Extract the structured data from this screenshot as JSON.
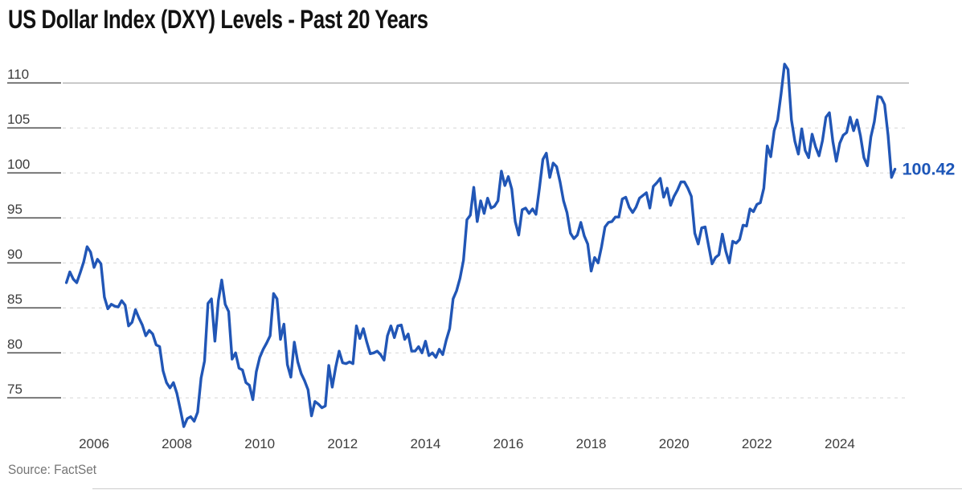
{
  "page": {
    "title": "US Dollar Index (DXY) Levels - Past 20 Years",
    "source": "Source: FactSet"
  },
  "chart_data": {
    "type": "line",
    "title": "US Dollar Index (DXY) Levels - Past 20 Years",
    "series_name": "US Dollar Index (DXY)",
    "frequency": "monthly",
    "start": "2005-05",
    "end": "2025-05",
    "xlabel": "",
    "ylabel": "",
    "y_ticks": [
      110,
      105,
      100,
      95,
      90,
      85,
      80,
      75
    ],
    "x_ticks": [
      "2006",
      "2008",
      "2010",
      "2012",
      "2014",
      "2016",
      "2018",
      "2020",
      "2022",
      "2024"
    ],
    "ylim": [
      71,
      113
    ],
    "grid": "horizontal dashed gridlines; top 110 gridline solid; no legend",
    "end_label": "100.42",
    "colors": {
      "line": "#2156b6",
      "end_label": "#1d56b8",
      "axis_text": "#3d3d3d",
      "grid_dashed": "#d9d9d9",
      "grid_solid_top": "#a0a0a0",
      "tick_underline": "#4f4f4f"
    },
    "values_by_year": {
      "2005": [
        87.8,
        89.0,
        88.2,
        87.8,
        88.9,
        90.1,
        91.8,
        91.2
      ],
      "2006": [
        89.5,
        90.4,
        89.9,
        86.2,
        84.9,
        85.4,
        85.2,
        85.1,
        85.8,
        85.3,
        83.0,
        83.4
      ],
      "2007": [
        84.8,
        83.9,
        83.1,
        81.9,
        82.5,
        82.1,
        80.9,
        80.7,
        78.0,
        76.7,
        76.1,
        76.7
      ],
      "2008": [
        75.5,
        73.7,
        71.8,
        72.7,
        72.9,
        72.4,
        73.4,
        77.2,
        79.1,
        85.5,
        86.0,
        81.3
      ],
      "2009": [
        85.8,
        88.1,
        85.4,
        84.6,
        79.3,
        80.0,
        78.3,
        78.1,
        76.7,
        76.4,
        74.8,
        77.9
      ],
      "2010": [
        79.5,
        80.4,
        81.1,
        81.9,
        86.6,
        86.0,
        81.5,
        83.2,
        78.7,
        77.3,
        81.2,
        79.0
      ],
      "2011": [
        77.7,
        76.9,
        75.9,
        73.0,
        74.6,
        74.3,
        73.9,
        74.1,
        78.6,
        76.2,
        78.4,
        80.2
      ],
      "2012": [
        78.9,
        78.8,
        79.0,
        78.8,
        83.0,
        81.6,
        82.7,
        81.2,
        79.9,
        80.0,
        80.2,
        79.8
      ],
      "2013": [
        79.2,
        81.9,
        83.0,
        81.7,
        83.0,
        83.1,
        81.5,
        82.1,
        80.2,
        80.2,
        80.7,
        80.0
      ],
      "2014": [
        81.3,
        79.7,
        80.0,
        79.5,
        80.4,
        79.8,
        81.4,
        82.7,
        86.0,
        86.9,
        88.3,
        90.3
      ],
      "2015": [
        94.8,
        95.3,
        98.4,
        94.6,
        96.9,
        95.5,
        97.2,
        96.1,
        96.3,
        96.9,
        100.2,
        98.6
      ],
      "2016": [
        99.6,
        98.2,
        94.6,
        93.1,
        95.9,
        96.1,
        95.5,
        96.0,
        95.4,
        98.3,
        101.5,
        102.2
      ],
      "2017": [
        99.5,
        101.1,
        100.7,
        99.0,
        96.9,
        95.6,
        93.3,
        92.7,
        93.1,
        94.5,
        93.0,
        92.1
      ],
      "2018": [
        89.1,
        90.6,
        90.0,
        91.8,
        94.0,
        94.5,
        94.6,
        95.1,
        95.1,
        97.1,
        97.3,
        96.2
      ],
      "2019": [
        95.6,
        96.2,
        97.2,
        97.5,
        97.8,
        96.1,
        98.5,
        98.9,
        99.4,
        97.3,
        98.3,
        96.4
      ],
      "2020": [
        97.4,
        98.1,
        99.0,
        99.0,
        98.3,
        97.4,
        93.3,
        92.1,
        93.9,
        94.0,
        91.9,
        89.9
      ],
      "2021": [
        90.6,
        90.9,
        93.2,
        91.3,
        90.0,
        92.4,
        92.2,
        92.6,
        94.2,
        94.1,
        96.0,
        95.7
      ],
      "2022": [
        96.5,
        96.7,
        98.3,
        103.0,
        101.8,
        104.7,
        105.9,
        108.8,
        112.1,
        111.5,
        105.9,
        103.5
      ],
      "2023": [
        102.1,
        104.9,
        102.5,
        101.7,
        104.3,
        102.9,
        101.9,
        103.6,
        106.2,
        106.7,
        103.5,
        101.3
      ],
      "2024": [
        103.3,
        104.2,
        104.5,
        106.2,
        104.7,
        105.9,
        104.1,
        101.7,
        100.8,
        104.0,
        105.7,
        108.5
      ],
      "2025": [
        108.4,
        107.6,
        104.2,
        99.5,
        100.42
      ]
    }
  }
}
